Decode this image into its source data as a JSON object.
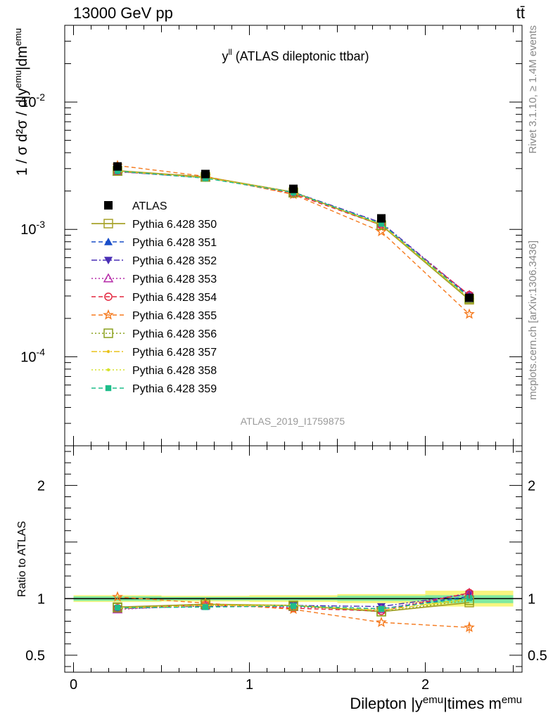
{
  "header": {
    "left": "13000 GeV pp",
    "right": "tt̄"
  },
  "side_labels": {
    "rivet": "Rivet 3.1.10, ≥ 1.4M events",
    "mcplots": "mcplots.cern.ch [arXiv:1306.3436]"
  },
  "plot_title": "y^ll (ATLAS dileptonic ttbar)",
  "analysis_id": "ATLAS_2019_I1759875",
  "colors": {
    "data": "#000000",
    "band_inner": "#7fe9a0",
    "band_outer": "#f7f57e"
  },
  "chart_data": [
    {
      "type": "line",
      "panel": "main",
      "ylabel": "1 / σ d²σ / d|y^emu|dm^emu",
      "yscale": "log",
      "ylim": [
        2e-05,
        0.04
      ],
      "xlim": [
        -0.05,
        2.55
      ],
      "y_tick_labels": [
        "10^-4",
        "10^-3",
        "10^-2"
      ],
      "x": [
        0.25,
        0.75,
        1.25,
        1.75,
        2.25
      ],
      "series": [
        {
          "name": "ATLAS",
          "marker": "square-filled",
          "style": "none",
          "color": "#000000",
          "values": [
            0.00312,
            0.00272,
            0.00208,
            0.00122,
            0.00029
          ]
        },
        {
          "name": "Pythia 6.428 350",
          "marker": "square-open",
          "style": "solid",
          "color": "#a7a22a",
          "values": [
            0.00289,
            0.00258,
            0.00196,
            0.00108,
            0.00028
          ]
        },
        {
          "name": "Pythia 6.428 351",
          "marker": "triangle-up",
          "style": "dashed",
          "color": "#1a4ec9",
          "values": [
            0.00285,
            0.00253,
            0.00195,
            0.00111,
            0.000296
          ]
        },
        {
          "name": "Pythia 6.428 352",
          "marker": "triangle-down",
          "style": "dashdot",
          "color": "#4a2fb5",
          "values": [
            0.00284,
            0.00254,
            0.00196,
            0.00113,
            0.000302
          ]
        },
        {
          "name": "Pythia 6.428 353",
          "marker": "triangle-open",
          "style": "dotted",
          "color": "#b62ba8",
          "values": [
            0.00283,
            0.00256,
            0.00192,
            0.0011,
            0.000305
          ]
        },
        {
          "name": "Pythia 6.428 354",
          "marker": "circle-open",
          "style": "dashed",
          "color": "#e3263e",
          "values": [
            0.00285,
            0.00257,
            0.0019,
            0.00108,
            0.000305
          ]
        },
        {
          "name": "Pythia 6.428 355",
          "marker": "star-open",
          "style": "dashed",
          "color": "#f57a1e",
          "values": [
            0.00317,
            0.00261,
            0.00188,
            0.00096,
            0.000216
          ]
        },
        {
          "name": "Pythia 6.428 356",
          "marker": "square-open",
          "style": "dotted",
          "color": "#8aa11d",
          "values": [
            0.00287,
            0.00258,
            0.00194,
            0.00108,
            0.000286
          ]
        },
        {
          "name": "Pythia 6.428 357",
          "marker": "dot",
          "style": "dashdot",
          "color": "#e8c21a",
          "values": [
            0.00286,
            0.00255,
            0.00195,
            0.00109,
            0.00029
          ]
        },
        {
          "name": "Pythia 6.428 358",
          "marker": "dot",
          "style": "dotted",
          "color": "#d5e22a",
          "values": [
            0.00286,
            0.00255,
            0.00196,
            0.0011,
            0.000288
          ]
        },
        {
          "name": "Pythia 6.428 359",
          "marker": "square-filled-small",
          "style": "dashed",
          "color": "#1ebd8a",
          "values": [
            0.00287,
            0.00252,
            0.00195,
            0.00111,
            0.000292
          ]
        }
      ]
    },
    {
      "type": "line",
      "panel": "ratio",
      "ylabel": "Ratio to ATLAS",
      "xlabel": "Dilepton |y^emu|times m^emu",
      "ylim": [
        0.35,
        2.35
      ],
      "xlim": [
        -0.05,
        2.55
      ],
      "y_tick_labels": [
        "0.5",
        "1",
        "2"
      ],
      "x_tick_labels": [
        "0",
        "1",
        "2"
      ],
      "x": [
        0.25,
        0.75,
        1.25,
        1.75,
        2.25
      ],
      "uncertainty_bands": [
        {
          "x_range": [
            0.0,
            0.5
          ],
          "inner": [
            0.98,
            1.02
          ],
          "outer": [
            0.97,
            1.03
          ]
        },
        {
          "x_range": [
            0.5,
            1.0
          ],
          "inner": [
            0.985,
            1.015
          ],
          "outer": [
            0.975,
            1.025
          ]
        },
        {
          "x_range": [
            1.0,
            1.5
          ],
          "inner": [
            0.985,
            1.015
          ],
          "outer": [
            0.97,
            1.03
          ]
        },
        {
          "x_range": [
            1.5,
            2.0
          ],
          "inner": [
            0.98,
            1.025
          ],
          "outer": [
            0.96,
            1.04
          ]
        },
        {
          "x_range": [
            2.0,
            2.5
          ],
          "inner": [
            0.96,
            1.03
          ],
          "outer": [
            0.93,
            1.07
          ]
        }
      ],
      "series": [
        {
          "name": "Pythia 6.428 350",
          "values": [
            0.925,
            0.95,
            0.94,
            0.885,
            0.965
          ]
        },
        {
          "name": "Pythia 6.428 351",
          "values": [
            0.915,
            0.93,
            0.935,
            0.91,
            1.02
          ]
        },
        {
          "name": "Pythia 6.428 352",
          "values": [
            0.91,
            0.935,
            0.94,
            0.93,
            1.04
          ]
        },
        {
          "name": "Pythia 6.428 353",
          "values": [
            0.905,
            0.94,
            0.925,
            0.905,
            1.05
          ]
        },
        {
          "name": "Pythia 6.428 354",
          "values": [
            0.915,
            0.945,
            0.915,
            0.89,
            1.05
          ]
        },
        {
          "name": "Pythia 6.428 355",
          "values": [
            1.015,
            0.96,
            0.905,
            0.79,
            0.745
          ]
        },
        {
          "name": "Pythia 6.428 356",
          "values": [
            0.92,
            0.95,
            0.935,
            0.885,
            0.985
          ]
        },
        {
          "name": "Pythia 6.428 357",
          "values": [
            0.915,
            0.94,
            0.94,
            0.895,
            1.0
          ]
        },
        {
          "name": "Pythia 6.428 358",
          "values": [
            0.915,
            0.94,
            0.94,
            0.9,
            0.99
          ]
        },
        {
          "name": "Pythia 6.428 359",
          "values": [
            0.92,
            0.925,
            0.935,
            0.91,
            1.005
          ]
        }
      ]
    }
  ]
}
